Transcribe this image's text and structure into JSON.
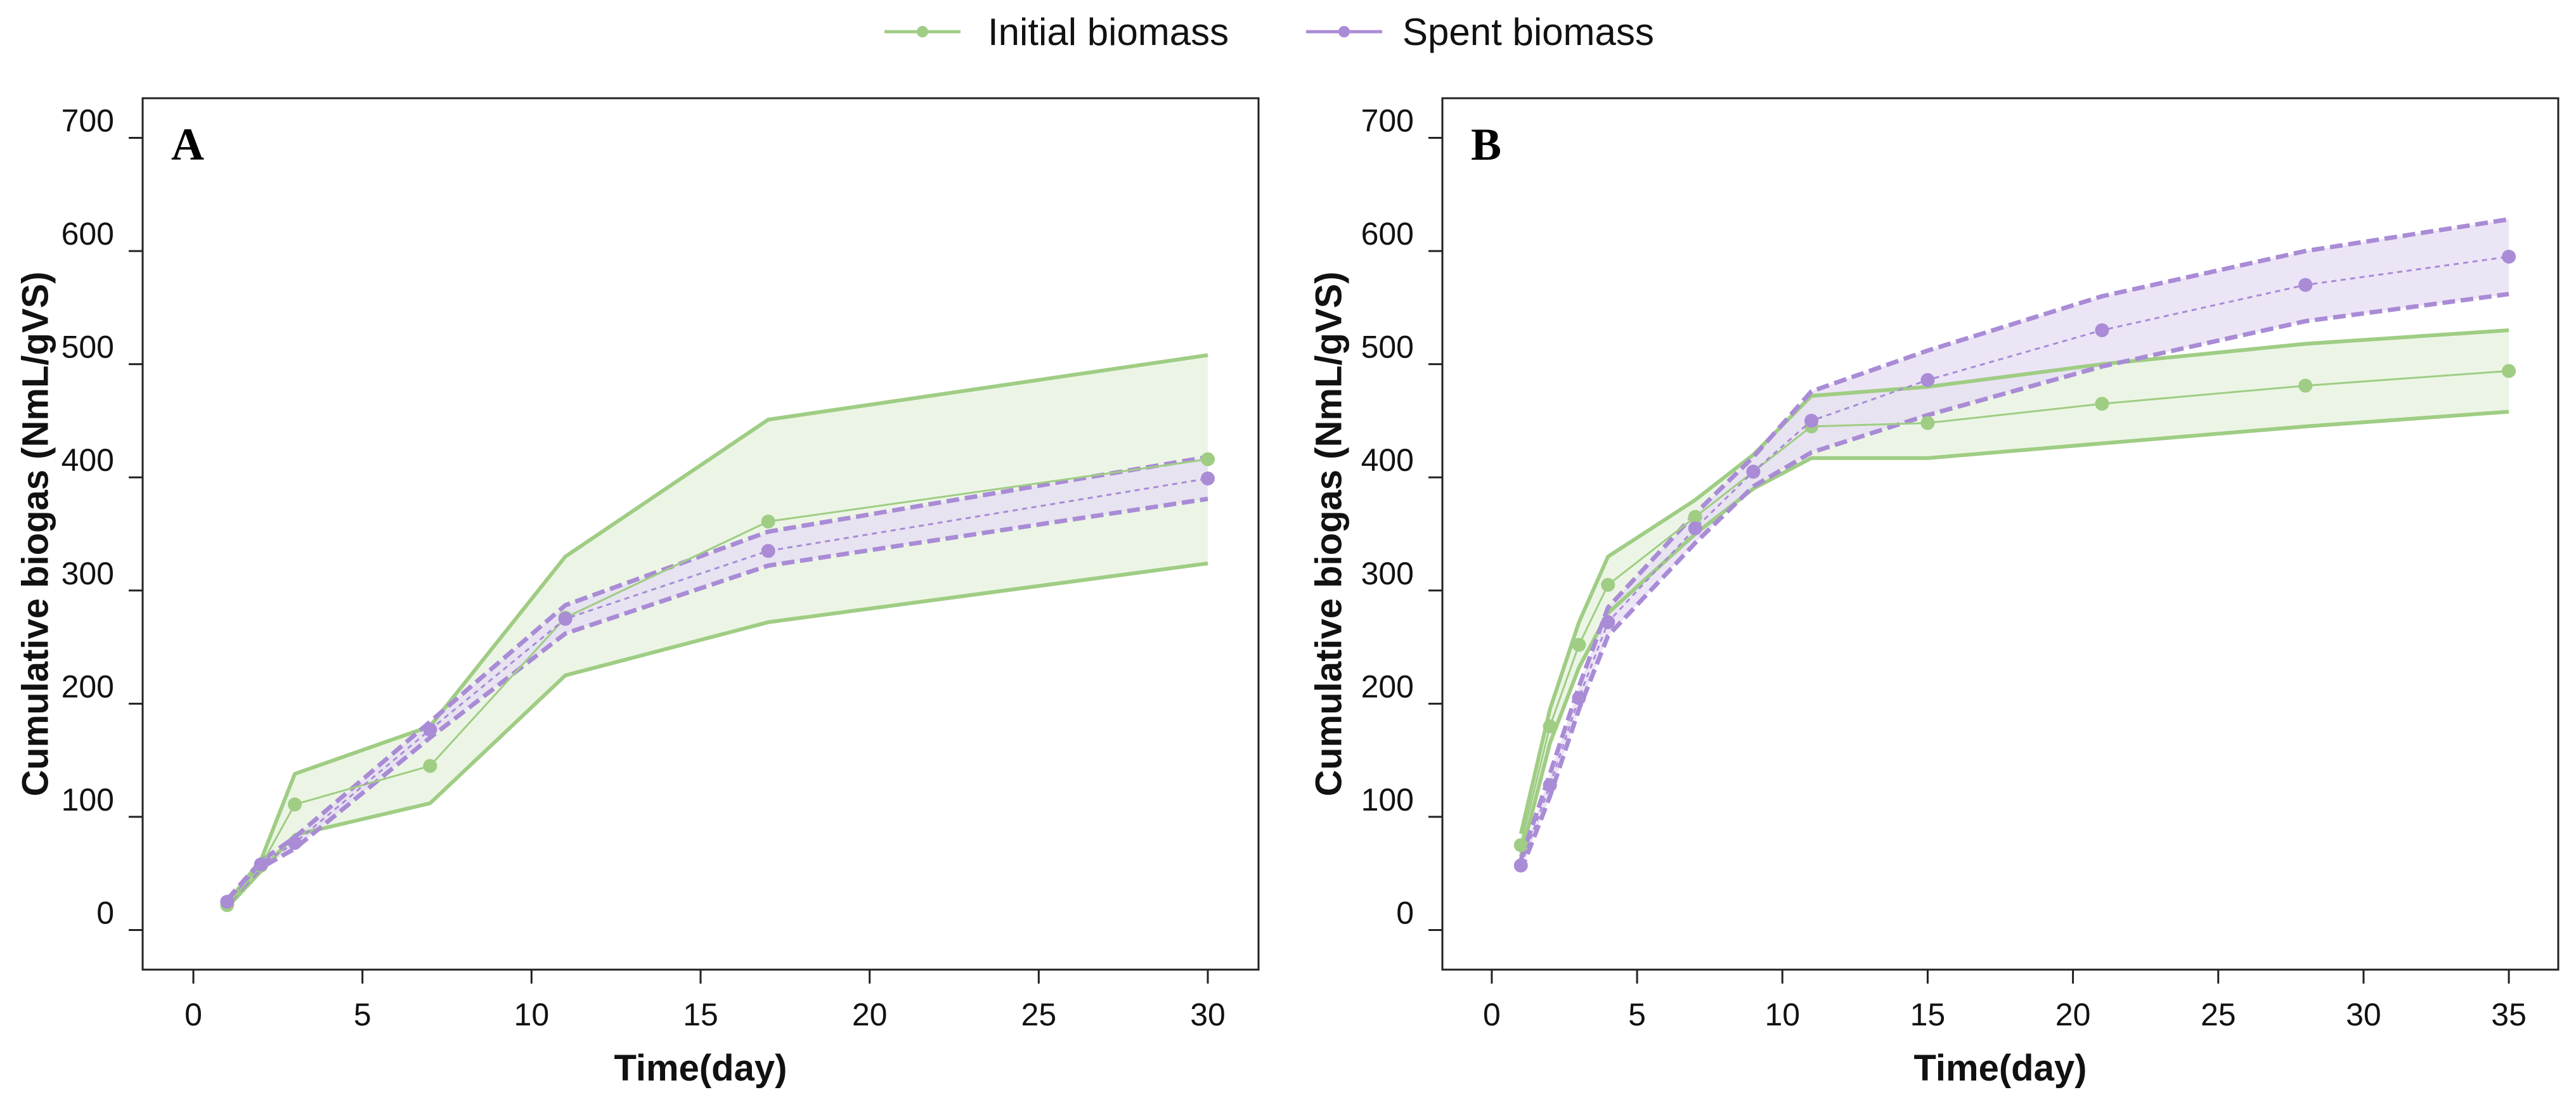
{
  "colors": {
    "initial": "#9fcd84",
    "initial_fill": "#e9f3e1",
    "spent": "#a98bd6",
    "spent_fill": "#e6dcf3",
    "axis": "#222222"
  },
  "legend": {
    "items": [
      {
        "key": "initial",
        "label": "Initial biomass"
      },
      {
        "key": "spent",
        "label": "Spent biomass"
      }
    ]
  },
  "chart_data": [
    {
      "type": "line",
      "panel_label": "A",
      "xlabel": "Time(day)",
      "ylabel": "Cumulative biogas (NmL/gVS)",
      "xlim": [
        -1.5,
        31.5
      ],
      "ylim": [
        -35,
        735
      ],
      "xticks": [
        0,
        5,
        10,
        15,
        20,
        25,
        30
      ],
      "yticks": [
        0,
        100,
        200,
        300,
        400,
        500,
        600,
        700
      ],
      "legend_position": "top-center",
      "series": [
        {
          "name": "Initial biomass",
          "key": "initial",
          "x": [
            1,
            2,
            3,
            7,
            11,
            17,
            30
          ],
          "mean": [
            22,
            57,
            111,
            145,
            276,
            361,
            416
          ],
          "upper": [
            24,
            62,
            138,
            180,
            330,
            451,
            508
          ],
          "lower": [
            20,
            52,
            84,
            112,
            225,
            272,
            324
          ]
        },
        {
          "name": "Spent biomass",
          "key": "spent",
          "x": [
            1,
            2,
            3,
            7,
            11,
            17,
            30
          ],
          "mean": [
            25,
            58,
            77,
            177,
            275,
            335,
            399
          ],
          "upper": [
            27,
            61,
            82,
            184,
            287,
            352,
            418
          ],
          "lower": [
            23,
            55,
            72,
            170,
            262,
            322,
            381
          ]
        }
      ]
    },
    {
      "type": "line",
      "panel_label": "B",
      "xlabel": "Time(day)",
      "ylabel": "Cumulative biogas (NmL/gVS)",
      "xlim": [
        -1.7,
        36.7
      ],
      "ylim": [
        -35,
        735
      ],
      "xticks": [
        0,
        5,
        10,
        15,
        20,
        25,
        30,
        35
      ],
      "yticks": [
        0,
        100,
        200,
        300,
        400,
        500,
        600,
        700
      ],
      "legend_position": "top-center",
      "series": [
        {
          "name": "Initial biomass",
          "key": "initial",
          "x": [
            1,
            2,
            3,
            4,
            7,
            9,
            11,
            15,
            21,
            28,
            35
          ],
          "mean": [
            75,
            180,
            252,
            305,
            365,
            405,
            445,
            448,
            465,
            481,
            494
          ],
          "upper": [
            85,
            195,
            272,
            330,
            380,
            420,
            472,
            480,
            500,
            518,
            530
          ],
          "lower": [
            65,
            165,
            232,
            280,
            350,
            390,
            417,
            417,
            430,
            445,
            458
          ]
        },
        {
          "name": "Spent biomass",
          "key": "spent",
          "x": [
            1,
            2,
            3,
            4,
            7,
            9,
            11,
            15,
            21,
            28,
            35
          ],
          "mean": [
            57,
            128,
            205,
            272,
            355,
            405,
            450,
            486,
            530,
            570,
            595
          ],
          "upper": [
            62,
            138,
            215,
            285,
            368,
            418,
            476,
            512,
            560,
            600,
            628
          ],
          "lower": [
            52,
            118,
            195,
            260,
            342,
            392,
            422,
            455,
            498,
            538,
            562
          ]
        }
      ]
    }
  ]
}
